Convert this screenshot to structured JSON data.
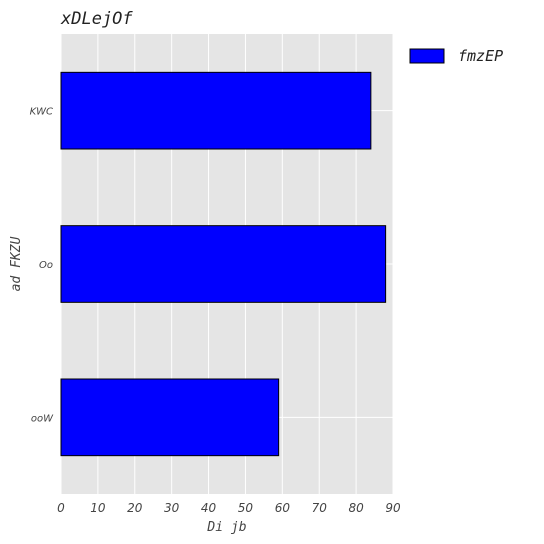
{
  "chart_data": {
    "type": "bar",
    "orientation": "horizontal",
    "title": "xDLejOf",
    "xlabel": "Di jb",
    "ylabel": "ad FKZU",
    "categories": [
      "KWC",
      "Oo",
      "ooW"
    ],
    "series": [
      {
        "name": "fmzEP",
        "values": [
          84,
          88,
          59
        ],
        "color": "#0000ff"
      }
    ],
    "xlim": [
      0,
      90
    ],
    "xticks": [
      0,
      10,
      20,
      30,
      40,
      50,
      60,
      70,
      80,
      90
    ],
    "grid": true,
    "legend_position": "outside-top-right",
    "background_color": "#e5e5e5",
    "edge_color": "#000000"
  }
}
